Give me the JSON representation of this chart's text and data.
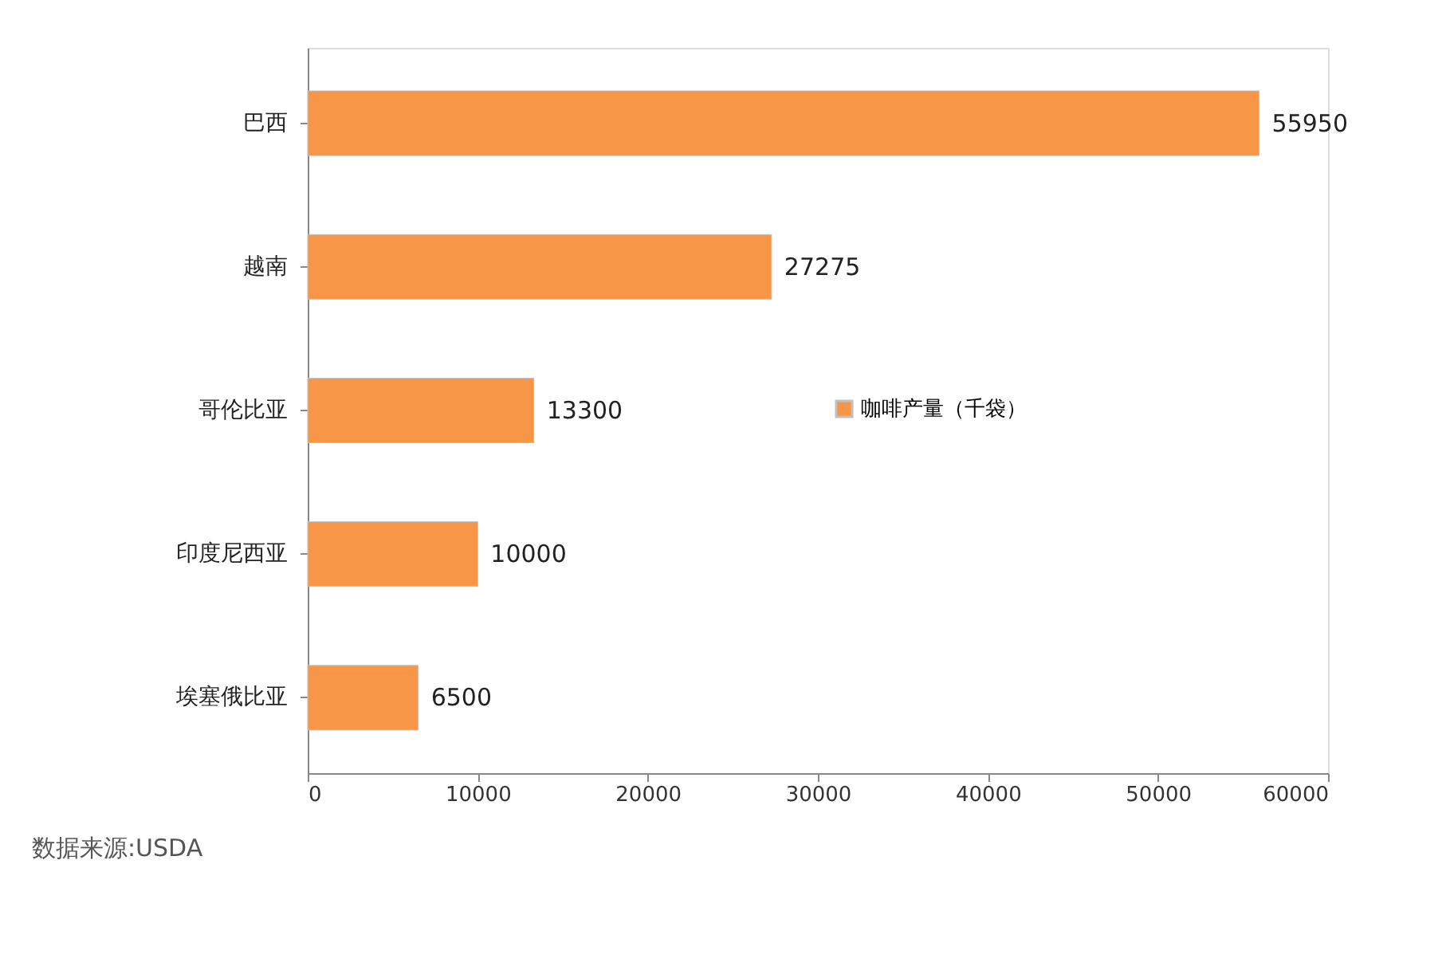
{
  "chart_data": {
    "type": "bar",
    "orientation": "horizontal",
    "categories": [
      "巴西",
      "越南",
      "哥伦比亚",
      "印度尼西亚",
      "埃塞俄比亚"
    ],
    "series": [
      {
        "name": "咖啡产量（千袋）",
        "color": "#f79646",
        "values": [
          55950,
          27275,
          13300,
          10000,
          6500
        ]
      }
    ],
    "xlim": [
      0,
      60000
    ],
    "xticks": [
      0,
      10000,
      20000,
      30000,
      40000,
      50000,
      60000
    ],
    "data_labels": true,
    "grid": false,
    "legend": "right",
    "annotations": [
      "数据来源:USDA"
    ]
  }
}
